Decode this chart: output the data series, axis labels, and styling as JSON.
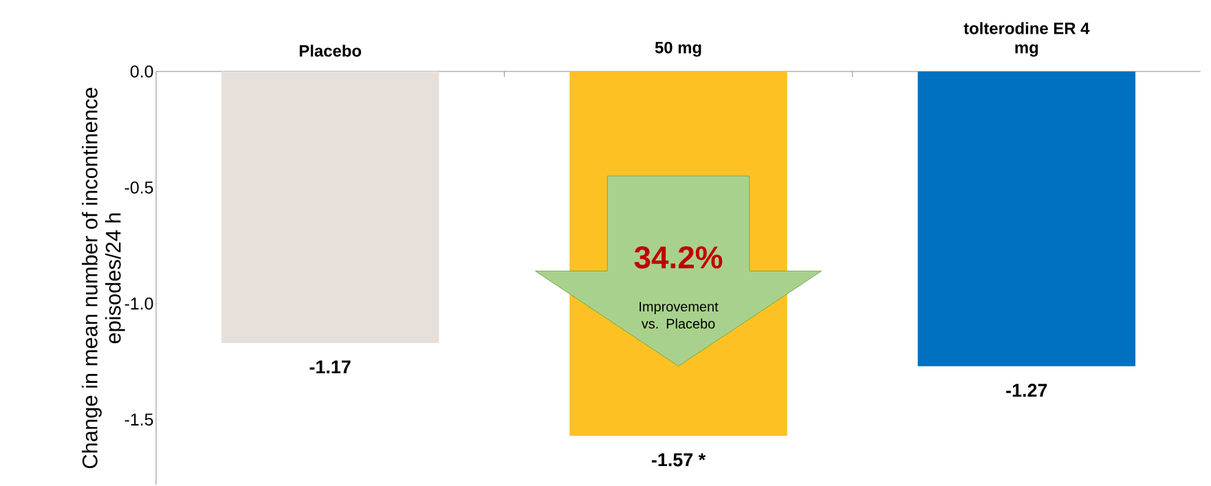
{
  "chart_data": {
    "type": "bar",
    "categories": [
      "Placebo",
      "50 mg",
      "tolterodine ER 4 mg"
    ],
    "values": [
      -1.17,
      -1.57,
      -1.27
    ],
    "colors": [
      "#e7e0da",
      "#fdc124",
      "#0070c0"
    ],
    "value_labels": [
      "-1.17",
      "-1.57 *",
      "-1.27"
    ],
    "ylabel": "Change in mean number of incontinence episodes/24 h",
    "ylim": [
      -1.78,
      0
    ],
    "yticks": [
      {
        "value": 0,
        "label": "0.0"
      },
      {
        "value": -0.5,
        "label": "-0.5"
      },
      {
        "value": -1.0,
        "label": "-1.0"
      },
      {
        "value": -1.5,
        "label": "-1.5"
      }
    ],
    "annotations": [
      "34.2%",
      "Improvement vs. Placebo"
    ]
  }
}
